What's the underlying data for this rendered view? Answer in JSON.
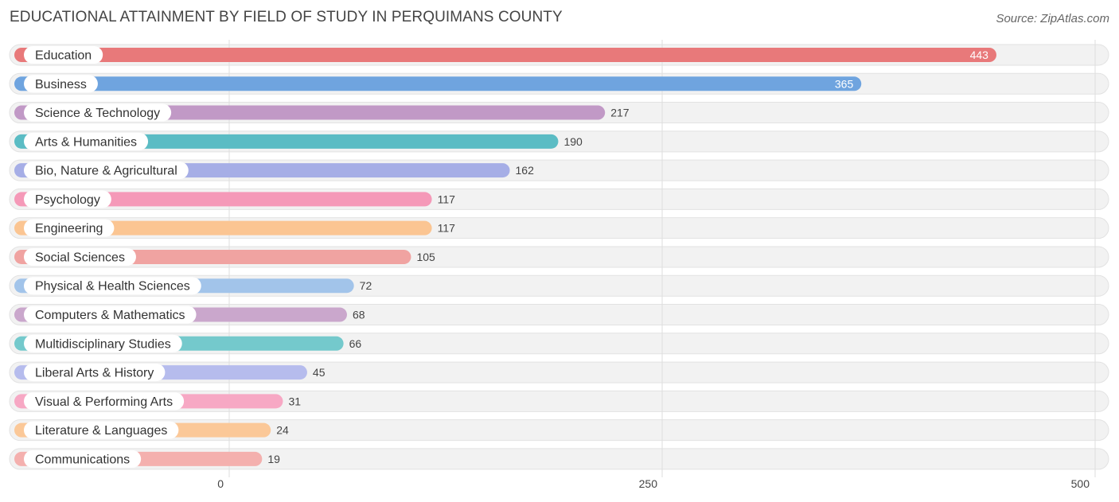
{
  "title": "EDUCATIONAL ATTAINMENT BY FIELD OF STUDY IN PERQUIMANS COUNTY",
  "source": "Source: ZipAtlas.com",
  "chart_data": {
    "type": "bar",
    "orientation": "horizontal",
    "title": "EDUCATIONAL ATTAINMENT BY FIELD OF STUDY IN PERQUIMANS COUNTY",
    "xlabel": "",
    "ylabel": "",
    "xlim": [
      0,
      500
    ],
    "ticks": [
      0,
      250,
      500
    ],
    "grid": true,
    "categories": [
      "Education",
      "Business",
      "Science & Technology",
      "Arts & Humanities",
      "Bio, Nature & Agricultural",
      "Psychology",
      "Engineering",
      "Social Sciences",
      "Physical & Health Sciences",
      "Computers & Mathematics",
      "Multidisciplinary Studies",
      "Liberal Arts & History",
      "Visual & Performing Arts",
      "Literature & Languages",
      "Communications"
    ],
    "values": [
      443,
      365,
      217,
      190,
      162,
      117,
      117,
      105,
      72,
      68,
      66,
      45,
      31,
      24,
      19
    ],
    "colors": [
      "#e8797a",
      "#6fa4df",
      "#c199c6",
      "#5bbcc4",
      "#a6aee6",
      "#f599b8",
      "#fbc592",
      "#f0a3a1",
      "#a2c4ea",
      "#caa7cc",
      "#74c9cc",
      "#b6bced",
      "#f7a8c4",
      "#fbc898",
      "#f4b0ae"
    ]
  }
}
